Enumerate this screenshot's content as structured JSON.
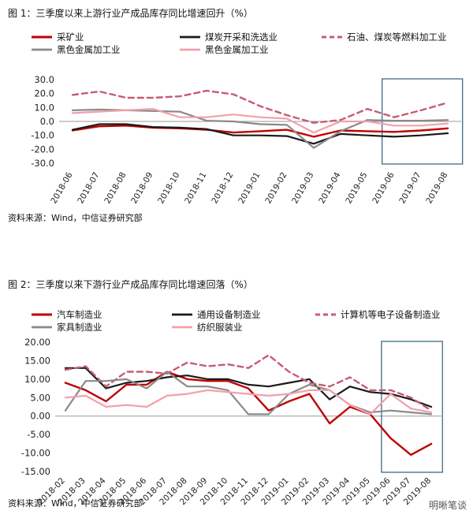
{
  "page": {
    "fig1_caption": "图 1：三季度以来上游行业产成品库存同比增速回升（%）",
    "fig1_source": "资料来源：Wind，中信证券研究部",
    "fig2_caption": "图 2：三季度以来下游行业产成品库存同比增速回落（%）",
    "fig2_source": "资料来源：Wind，中信证券研究部",
    "watermark": "明晰笔谈"
  },
  "chart_data": [
    {
      "type": "line",
      "categories": [
        "2018-06",
        "2018-07",
        "2018-08",
        "2018-09",
        "2018-10",
        "2018-11",
        "2018-12",
        "2019-01",
        "2019-02",
        "2019-03",
        "2019-04",
        "2019-05",
        "2019-06",
        "2019-07",
        "2019-08"
      ],
      "ylim": [
        -30,
        30
      ],
      "yticks": [
        "30.0",
        "20.0",
        "10.0",
        "0.0",
        "-10.0",
        "-20.0",
        "-30.0"
      ],
      "highlight_range": [
        "2019-06",
        "2019-08"
      ],
      "series": [
        {
          "name": "采矿业",
          "color": "#c00000",
          "dash": "solid",
          "width": 2.4,
          "values": [
            -6.5,
            -3.5,
            -3,
            -4.5,
            -5,
            -6,
            -8,
            -7,
            -6,
            -11,
            -6.5,
            -7,
            -7.5,
            -6.5,
            -5
          ]
        },
        {
          "name": "煤炭开采和洗选业",
          "color": "#1a1a1a",
          "dash": "solid",
          "width": 2.2,
          "values": [
            -6,
            -2,
            -2,
            -4,
            -4.5,
            -5.5,
            -10,
            -10,
            -10.5,
            -16,
            -9,
            -10,
            -11,
            -10,
            -8.5
          ]
        },
        {
          "name": "石油、煤炭等燃料加工业",
          "color": "#c75b74",
          "dash": "dashed",
          "width": 2.4,
          "values": [
            19,
            21.5,
            17,
            17,
            18,
            22,
            19.5,
            11,
            4.5,
            -1,
            1,
            9,
            3,
            8,
            13.5
          ]
        },
        {
          "name": "黑色金属加工业",
          "color": "#8a8a8a",
          "dash": "solid",
          "width": 2.2,
          "values": [
            8,
            8.5,
            8,
            7.5,
            7,
            0.5,
            0,
            -2,
            -2.5,
            -19,
            -7,
            1,
            0.5,
            0.5,
            1
          ]
        },
        {
          "name": "黑色金属加工业",
          "color": "#f2a0ab",
          "dash": "solid",
          "width": 2.2,
          "values": [
            6,
            7,
            8,
            9,
            3,
            3,
            5,
            3,
            2,
            -8,
            0,
            0,
            -3,
            -3,
            -1.5
          ]
        }
      ]
    },
    {
      "type": "line",
      "categories": [
        "2018-02",
        "2018-03",
        "2018-04",
        "2018-05",
        "2018-06",
        "2018-07",
        "2018-08",
        "2018-09",
        "2018-10",
        "2018-11",
        "2018-12",
        "2019-01",
        "2019-02",
        "2019-03",
        "2019-04",
        "2019-05",
        "2019-06",
        "2019-07",
        "2019-08"
      ],
      "ylim": [
        -15,
        20
      ],
      "yticks": [
        "20.00",
        "15.00",
        "10.00",
        "5.00",
        "0.00",
        "-5.00",
        "-10.00",
        "-15.00"
      ],
      "highlight_range": [
        "2019-06",
        "2019-08"
      ],
      "series": [
        {
          "name": "汽车制造业",
          "color": "#c00000",
          "dash": "solid",
          "width": 2.4,
          "values": [
            9,
            7,
            4,
            8.5,
            8.5,
            12,
            10,
            9.5,
            9.5,
            7.5,
            1.5,
            4,
            6,
            -2,
            2.5,
            0.5,
            -6,
            -10.5,
            -7.5
          ]
        },
        {
          "name": "通用设备制造业",
          "color": "#1a1a1a",
          "dash": "solid",
          "width": 2.2,
          "values": [
            13,
            13,
            7.5,
            9,
            9.5,
            10.5,
            11,
            10,
            10,
            8.5,
            8,
            9,
            10,
            4.5,
            8,
            6.5,
            6,
            4.5,
            2.5
          ]
        },
        {
          "name": "计算机等电子设备制造业",
          "color": "#c75b74",
          "dash": "dashed",
          "width": 2.4,
          "values": [
            12.5,
            13.5,
            8,
            12,
            12,
            11.5,
            14.5,
            13.5,
            14,
            13,
            16.5,
            12,
            9,
            8,
            10.5,
            7,
            7,
            5,
            1.5
          ]
        },
        {
          "name": "家具制造业",
          "color": "#8a8a8a",
          "dash": "solid",
          "width": 2.2,
          "values": [
            1.5,
            9.5,
            9.5,
            10,
            7.5,
            12,
            8,
            8,
            7,
            0.5,
            0.5,
            6,
            8.5,
            7,
            3,
            1,
            1.5,
            1,
            0.5
          ]
        },
        {
          "name": "纺织服装业",
          "color": "#f2a0ab",
          "dash": "solid",
          "width": 2.2,
          "values": [
            5,
            5.5,
            2.5,
            3,
            2.5,
            5.5,
            6,
            7,
            6.5,
            6,
            5.5,
            6,
            7,
            7,
            3,
            0.5,
            6,
            2,
            1
          ]
        }
      ]
    }
  ]
}
